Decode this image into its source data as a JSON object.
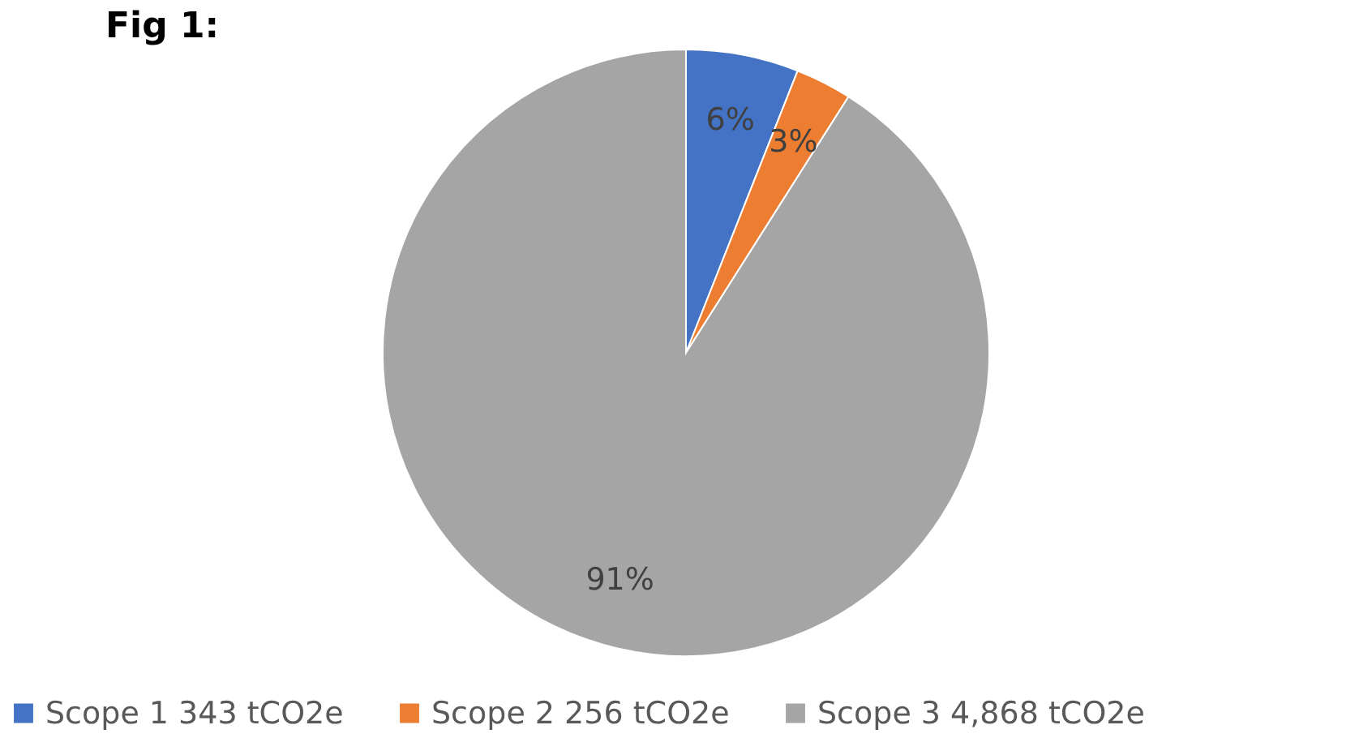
{
  "chart_data": {
    "type": "pie",
    "title": "Fig 1:",
    "categories": [
      "Scope 1 343 tCO2e",
      "Scope 2 256 tCO2e",
      "Scope 3 4,868 tCO2e"
    ],
    "values": [
      6,
      3,
      91
    ],
    "colors": [
      "#4472c4",
      "#ed7d31",
      "#a5a5a5"
    ],
    "value_labels": [
      "6%",
      "3%",
      "91%"
    ],
    "legend": "bottom"
  }
}
